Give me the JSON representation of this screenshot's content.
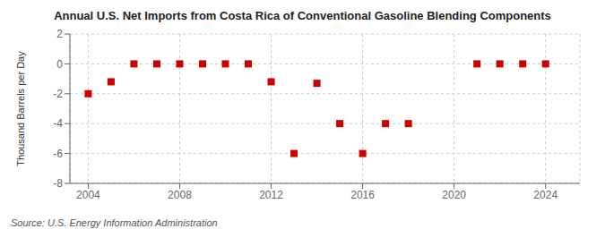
{
  "chart_data": {
    "type": "scatter",
    "title": "Annual U.S. Net Imports from Costa Rica of Conventional Gasoline Blending Components",
    "y_label": "Thousand Barrels per Day",
    "source": "Source: U.S. Energy Information Administration",
    "x": [
      2004,
      2005,
      2006,
      2007,
      2008,
      2009,
      2010,
      2011,
      2012,
      2013,
      2014,
      2015,
      2016,
      2017,
      2018,
      2021,
      2022,
      2023,
      2024
    ],
    "values": [
      -2.0,
      -1.2,
      0.0,
      0.0,
      0.0,
      0.0,
      0.0,
      0.0,
      -1.2,
      -6.0,
      -1.3,
      -4.0,
      -6.0,
      -4.0,
      -4.0,
      0.0,
      0.0,
      0.0,
      0.0
    ],
    "color": "#cc0000",
    "marker": "square",
    "xlim": [
      2003.2,
      2025.5
    ],
    "xticks": [
      2004,
      2008,
      2012,
      2016,
      2020,
      2024
    ],
    "ylim": [
      -8,
      2
    ],
    "yticks": [
      -8,
      -6,
      -4,
      -2,
      0,
      2
    ],
    "grid": true
  }
}
